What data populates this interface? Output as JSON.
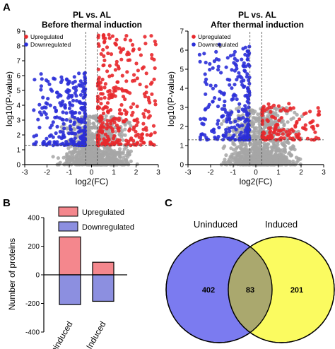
{
  "panels": {
    "a": "A",
    "b": "B",
    "c": "C"
  },
  "chart_data": [
    {
      "type": "scatter",
      "title": "PL vs. AL",
      "subtitle": "Before thermal induction",
      "xlabel": "log2(FC)",
      "ylabel": "log10(P-value)",
      "xlim": [
        -3,
        3
      ],
      "ylim": [
        0,
        9
      ],
      "xticks": [
        -3,
        -2,
        -1,
        0,
        1,
        2,
        3
      ],
      "yticks": [
        0,
        1,
        2,
        3,
        4,
        5,
        6,
        7,
        8,
        9
      ],
      "threshold_lines": {
        "x": [
          -0.26,
          0.26
        ],
        "y": 1.3
      },
      "series": [
        {
          "name": "Upregulated",
          "color": "#e8282c",
          "count": 300,
          "seed": 11,
          "xrange": [
            0.28,
            2.9
          ],
          "ymax": 8.8
        },
        {
          "name": "Downregulated",
          "color": "#2b2fd8",
          "count": 260,
          "seed": 23,
          "xrange": [
            -2.6,
            -0.28
          ],
          "ymax": 6.2
        },
        {
          "color": "#a6a6a6",
          "count": 900,
          "seed": 37,
          "xrange": [
            -2.2,
            3.0
          ],
          "ymax": 3.3
        }
      ]
    },
    {
      "type": "scatter",
      "title": "PL vs. AL",
      "subtitle": "After thermal induction",
      "xlabel": "log2(FC)",
      "ylabel": "log10(P-value)",
      "xlim": [
        -3,
        3
      ],
      "ylim": [
        0,
        7
      ],
      "xticks": [
        -3,
        -2,
        -1,
        0,
        1,
        2,
        3
      ],
      "yticks": [
        0,
        1,
        2,
        3,
        4,
        5,
        6,
        7
      ],
      "threshold_lines": {
        "x": [
          -0.26,
          0.26
        ],
        "y": 1.3
      },
      "series": [
        {
          "name": "Upregulated",
          "color": "#e8282c",
          "count": 130,
          "seed": 51,
          "xrange": [
            0.28,
            2.8
          ],
          "ymax": 3.2
        },
        {
          "name": "Downregulated",
          "color": "#2b2fd8",
          "count": 240,
          "seed": 67,
          "xrange": [
            -2.5,
            -0.28
          ],
          "ymax": 6.3
        },
        {
          "color": "#a6a6a6",
          "count": 900,
          "seed": 79,
          "xrange": [
            -2.0,
            2.9
          ],
          "ymax": 3.0
        }
      ]
    },
    {
      "type": "bar",
      "ylabel": "Number of proteins",
      "categories": [
        "Uninduced",
        "Induced"
      ],
      "ylim": [
        -400,
        400
      ],
      "yticks": [
        -400,
        -200,
        0,
        200,
        400
      ],
      "series": [
        {
          "name": "Upregulated",
          "color": "#f4878d",
          "values": [
            265,
            88
          ]
        },
        {
          "name": "Downregulated",
          "color": "#8c8fe0",
          "values": [
            -208,
            -185
          ]
        }
      ]
    },
    {
      "type": "venn",
      "sets": [
        {
          "name": "Uninduced",
          "color": "#7b7bf0",
          "only": 402
        },
        {
          "name": "Induced",
          "color": "#fbfb60",
          "only": 201
        }
      ],
      "overlap": 83,
      "overlap_color": "#aaa86e"
    }
  ]
}
